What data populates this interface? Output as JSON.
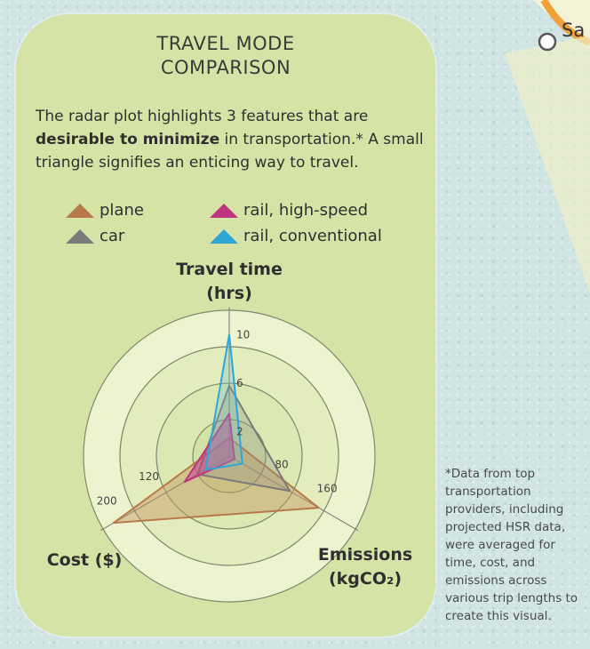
{
  "title_line1": "TRAVEL MODE",
  "title_line2": "COMPARISON",
  "description": {
    "part1": "The radar plot highlights 3 features that are ",
    "bold": "desirable to minimize",
    "part2": " in transportation.* A small triangle signifies an enticing way to travel."
  },
  "footnote": "*Data from top transportation providers, including projected HSR data, were averaged for time, cost, and emissions across various trip lengths to create this visual.",
  "map_label": "Sa",
  "chart_data": {
    "type": "radar",
    "axes": [
      {
        "key": "time",
        "label_line1": "Travel time",
        "label_line2": "(hrs)",
        "max": 12,
        "ticks": [
          2,
          6,
          10
        ]
      },
      {
        "key": "emissions",
        "label_line1": "Emissions",
        "label_line2": "(kgCO₂)",
        "max": 240,
        "ticks": [
          80,
          160
        ]
      },
      {
        "key": "cost",
        "label_line1": "Cost ($)",
        "label_line2": "",
        "max": 240,
        "ticks": [
          120,
          200
        ]
      }
    ],
    "series": [
      {
        "name": "plane",
        "color": "#b87a4b",
        "fill": "rgba(196,150,95,0.45)",
        "values": {
          "time": 1.5,
          "emissions": 170,
          "cost": 220
        }
      },
      {
        "name": "car",
        "color": "#7a7a7a",
        "fill": "rgba(140,140,140,0.30)",
        "values": {
          "time": 5.8,
          "emissions": 115,
          "cost": 60
        }
      },
      {
        "name": "rail, high-speed",
        "color": "#c0357f",
        "fill": "rgba(200,60,140,0.55)",
        "values": {
          "time": 3.5,
          "emissions": 10,
          "cost": 85
        }
      },
      {
        "name": "rail, conventional",
        "color": "#2ea6d6",
        "fill": "rgba(110,190,200,0.30)",
        "values": {
          "time": 10,
          "emissions": 25,
          "cost": 45
        }
      }
    ],
    "rings": [
      0.25,
      0.5,
      0.75,
      1.0
    ],
    "legend": "top-left"
  }
}
